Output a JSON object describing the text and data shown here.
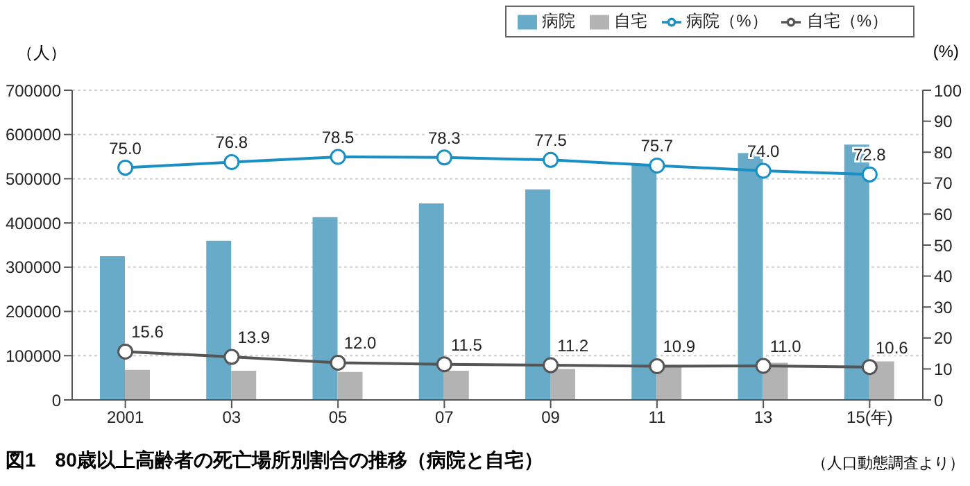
{
  "chart_data": {
    "type": "bar",
    "title": "図1　80歳以上高齢者の死亡場所別割合の推移（病院と自宅）",
    "annotations": [
      "（人口動態調査より）"
    ],
    "ylabel": "（人）",
    "y2label": "(%)",
    "categories": [
      "2001",
      "03",
      "05",
      "07",
      "09",
      "11",
      "13",
      "15(年)"
    ],
    "series": [
      {
        "name": "病院",
        "color": "#67abc9",
        "values": [
          325000,
          360000,
          413000,
          444000,
          476000,
          533000,
          558000,
          577000
        ]
      },
      {
        "name": "自宅",
        "color": "#b3b3b3",
        "values": [
          68000,
          66000,
          63000,
          66000,
          70000,
          79000,
          84000,
          87000
        ]
      },
      {
        "name": "病院（%）",
        "type": "line",
        "axis": "y2",
        "color": "#1a8fc4",
        "values": [
          75.0,
          76.8,
          78.5,
          78.3,
          77.5,
          75.7,
          74.0,
          72.8
        ],
        "value_labels": [
          "75.0",
          "76.8",
          "78.5",
          "78.3",
          "77.5",
          "75.7",
          "74.0",
          "72.8"
        ]
      },
      {
        "name": "自宅（%）",
        "type": "line",
        "axis": "y2",
        "color": "#555555",
        "values": [
          15.6,
          13.9,
          12.0,
          11.5,
          11.2,
          10.9,
          11.0,
          10.6
        ],
        "value_labels": [
          "15.6",
          "13.9",
          "12.0",
          "11.5",
          "11.2",
          "10.9",
          "11.0",
          "10.6"
        ]
      }
    ],
    "ylim": [
      0,
      700000
    ],
    "yticks": [
      0,
      100000,
      200000,
      300000,
      400000,
      500000,
      600000,
      700000
    ],
    "y2lim": [
      0,
      100
    ],
    "y2ticks": [
      0,
      10,
      20,
      30,
      40,
      50,
      60,
      70,
      80,
      90,
      100
    ],
    "grid": "y",
    "legend": "top right",
    "marker": "circle",
    "line_style": "solid"
  }
}
